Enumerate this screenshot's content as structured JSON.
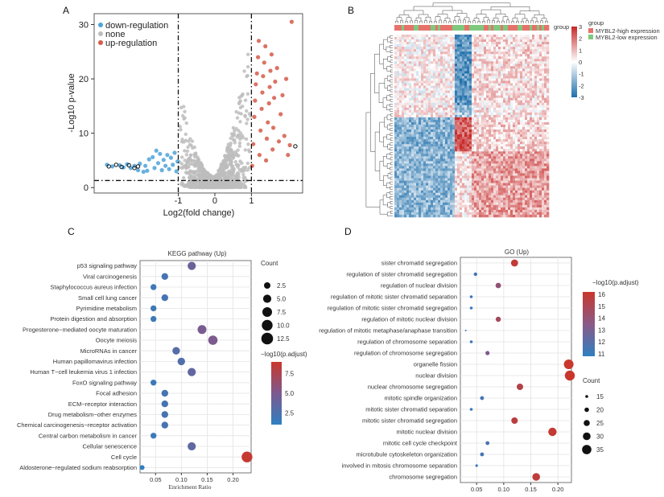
{
  "panels": {
    "A": "A",
    "B": "B",
    "C": "C",
    "D": "D"
  },
  "colors": {
    "down": "#4ea3d8",
    "none": "#bdbdbd",
    "up": "#d45b4a",
    "high_group": "#e7726b",
    "low_group": "#7fc97f",
    "dot_low": "#2f7fc1",
    "dot_high": "#c9372c"
  },
  "chart_data": [
    {
      "type": "scatter",
      "title": "",
      "xlabel": "Log2(fold change)",
      "ylabel": "-Log10 p-value",
      "xlim": [
        -3.3,
        2.4
      ],
      "ylim": [
        -1,
        32
      ],
      "xticks": [
        "-1",
        "0",
        "1"
      ],
      "xtick_values": [
        -1,
        0,
        1
      ],
      "yticks": [
        "0",
        "10",
        "20",
        "30"
      ],
      "ytick_values": [
        0,
        10,
        20,
        30
      ],
      "thresholds": {
        "log2fc": [
          -1,
          1
        ],
        "neglog10p": 1.3
      },
      "legend": [
        "down-regulation",
        "none",
        "up-regulation"
      ],
      "series": [
        {
          "name": "down-regulation",
          "points": [
            [
              -2.95,
              4.2
            ],
            [
              -2.8,
              3.9
            ],
            [
              -2.6,
              4.1
            ],
            [
              -2.5,
              3.7
            ],
            [
              -2.4,
              4.3
            ],
            [
              -2.3,
              3.6
            ],
            [
              -2.2,
              4.0
            ],
            [
              -2.1,
              3.2
            ],
            [
              -2.05,
              4.4
            ],
            [
              -1.95,
              2.9
            ],
            [
              -1.9,
              4.0
            ],
            [
              -1.85,
              3.1
            ],
            [
              -1.8,
              5.2
            ],
            [
              -1.7,
              5.6
            ],
            [
              -1.65,
              3.6
            ],
            [
              -1.6,
              6.8
            ],
            [
              -1.55,
              4.5
            ],
            [
              -1.5,
              6.2
            ],
            [
              -1.45,
              3.2
            ],
            [
              -1.4,
              5.1
            ],
            [
              -1.35,
              4.0
            ],
            [
              -1.3,
              6.0
            ],
            [
              -1.25,
              3.4
            ],
            [
              -1.2,
              5.5
            ],
            [
              -1.15,
              4.2
            ],
            [
              -1.1,
              6.4
            ],
            [
              -1.05,
              3.0
            ],
            [
              -1.02,
              4.8
            ]
          ]
        },
        {
          "name": "up-regulation",
          "points": [
            [
              1.02,
              4.0
            ],
            [
              1.05,
              8.0
            ],
            [
              1.08,
              13.0
            ],
            [
              1.1,
              16.0
            ],
            [
              1.12,
              19.0
            ],
            [
              1.15,
              21.0
            ],
            [
              1.18,
              24.0
            ],
            [
              1.2,
              27.0
            ],
            [
              1.22,
              6.0
            ],
            [
              1.25,
              10.5
            ],
            [
              1.28,
              14.5
            ],
            [
              1.3,
              17.5
            ],
            [
              1.32,
              20.5
            ],
            [
              1.35,
              23.0
            ],
            [
              1.38,
              26.0
            ],
            [
              1.4,
              5.0
            ],
            [
              1.42,
              9.0
            ],
            [
              1.45,
              12.0
            ],
            [
              1.48,
              15.5
            ],
            [
              1.5,
              18.5
            ],
            [
              1.52,
              21.5
            ],
            [
              1.55,
              24.5
            ],
            [
              1.58,
              7.0
            ],
            [
              1.6,
              11.0
            ],
            [
              1.62,
              16.5
            ],
            [
              1.65,
              19.5
            ],
            [
              1.7,
              22.0
            ],
            [
              1.75,
              8.5
            ],
            [
              1.8,
              13.5
            ],
            [
              1.85,
              17.0
            ],
            [
              1.9,
              9.5
            ],
            [
              1.95,
              20.0
            ],
            [
              2.0,
              6.0
            ],
            [
              2.05,
              7.8
            ],
            [
              2.1,
              30.5
            ]
          ]
        }
      ]
    },
    {
      "type": "heatmap",
      "title": "",
      "legend_title": "group",
      "legend": [
        "MYBL2-high expression",
        "MYBL2-low expression"
      ],
      "colorbar_ticks": [
        "3",
        "2",
        "1",
        "0",
        "-1",
        "-2",
        "-3"
      ],
      "colorbar_values": [
        3,
        2,
        1,
        0,
        -1,
        -2,
        -3
      ],
      "column_groups": "MYBL2-high vs MYBL2-low samples (hierarchically clustered)"
    },
    {
      "type": "scatter",
      "title": "KEGG pathway (Up)",
      "xlabel": "Enrichment Ratio",
      "ylabel": "",
      "xlim": [
        0.02,
        0.235
      ],
      "xticks": [
        "0.05",
        "0.10",
        "0.15",
        "0.20"
      ],
      "xtick_values": [
        0.05,
        0.1,
        0.15,
        0.2
      ],
      "size_legend_title": "Count",
      "size_legend": [
        "2.5",
        "5.0",
        "7.5",
        "10.0",
        "12.5"
      ],
      "size_legend_values": [
        2.5,
        5.0,
        7.5,
        10.0,
        12.5
      ],
      "color_legend_title": "−log10(p.adjust)",
      "color_legend": [
        "7.5",
        "5.0",
        "2.5"
      ],
      "color_legend_values": [
        7.5,
        5.0,
        2.5
      ],
      "color_range": [
        1.0,
        9.0
      ],
      "categories": [
        "p53 signaling pathway",
        "Viral carcinogenesis",
        "Staphylococcus aureus infection",
        "Small cell lung cancer",
        "Pyrimidine metabolism",
        "Protein digestion and absorption",
        "Progesterone−mediated oocyte maturation",
        "Oocyte meiosis",
        "MicroRNAs in cancer",
        "Human papillomavirus infection",
        "Human T−cell leukemia virus 1 infection",
        "FoxO signaling pathway",
        "Focal adhesion",
        "ECM−receptor interaction",
        "Drug metabolism−other enzymes",
        "Chemical carcinogenesis−receptor activation",
        "Central carbon metabolism in cancer",
        "Cellular senescence",
        "Cell cycle",
        "Aldosterone−regulated sodium reabsorption"
      ],
      "x": [
        0.12,
        0.068,
        0.046,
        0.068,
        0.046,
        0.046,
        0.14,
        0.161,
        0.09,
        0.1,
        0.12,
        0.046,
        0.068,
        0.068,
        0.068,
        0.068,
        0.046,
        0.12,
        0.227,
        0.024
      ],
      "count": [
        5,
        3,
        2,
        3,
        2,
        2,
        6,
        7,
        4,
        4,
        5,
        2,
        3,
        3,
        3,
        3,
        2,
        5,
        10,
        1
      ],
      "p_adjust": [
        4.2,
        2.3,
        1.8,
        2.2,
        1.8,
        1.7,
        4.8,
        5.0,
        3.0,
        2.8,
        3.6,
        1.6,
        2.1,
        2.2,
        2.2,
        2.3,
        1.6,
        3.5,
        8.8,
        1.0
      ]
    },
    {
      "type": "scatter",
      "title": "GO (Up)",
      "xlabel": "Enrichment Ratio",
      "ylabel": "",
      "xlim": [
        0.02,
        0.225
      ],
      "xticks": [
        "0.05",
        "0.10",
        "0.15",
        "0.20"
      ],
      "xtick_values": [
        0.05,
        0.1,
        0.15,
        0.2
      ],
      "size_legend_title": "Count",
      "size_legend": [
        "15",
        "20",
        "25",
        "30",
        "35"
      ],
      "size_legend_values": [
        15,
        20,
        25,
        30,
        35
      ],
      "color_legend_title": "−log10(p.adjust)",
      "color_legend": [
        "16",
        "15",
        "14",
        "13",
        "12",
        "11"
      ],
      "color_legend_values": [
        16,
        15,
        14,
        13,
        12,
        11
      ],
      "color_range": [
        10.8,
        16.2
      ],
      "categories": [
        "sister chromatid segregation",
        "regulation of sister chromatid segregation",
        "regulation of nuclear division",
        "regulation of mitotic sister chromatid separation",
        "regulation of mitotic sister chromatid segregation",
        "regulation of mitotic nuclear division",
        "regulation of mitotic metaphase/anaphase transition",
        "regulation of chromosome separation",
        "regulation of chromosome segregation",
        "organelle fission",
        "nuclear division",
        "nuclear chromosome segregation",
        "mitotic spindle organization",
        "mitotic sister chromatid separation",
        "mitotic sister chromatid segregation",
        "mitotic nuclear division",
        "mitotic cell cycle checkpoint",
        "microtubule cytoskeleton organization",
        "involved in mitosis chromosome separation",
        "chromosome segregation"
      ],
      "x": [
        0.12,
        0.048,
        0.09,
        0.04,
        0.04,
        0.09,
        0.03,
        0.04,
        0.07,
        0.22,
        0.222,
        0.13,
        0.06,
        0.04,
        0.12,
        0.19,
        0.07,
        0.06,
        0.05,
        0.16
      ],
      "count": [
        28,
        17,
        23,
        15,
        15,
        22,
        11,
        15,
        19,
        36,
        37,
        26,
        18,
        15,
        26,
        32,
        18,
        18,
        14,
        30
      ],
      "p_adjust": [
        15.9,
        11.5,
        14.2,
        11.3,
        11.2,
        14.9,
        11.0,
        11.3,
        13.5,
        16.2,
        16.2,
        15.4,
        11.6,
        11.2,
        15.7,
        16.0,
        11.7,
        11.5,
        11.2,
        15.8
      ]
    }
  ]
}
